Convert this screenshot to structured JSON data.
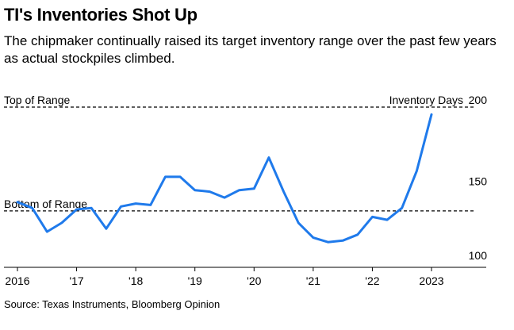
{
  "header": {
    "title": "TI's Inventories Shot Up",
    "subtitle": "The chipmaker continually raised its target inventory range over the past few years as actual stockpiles climbed."
  },
  "footer": {
    "source": "Source: Texas Instruments, Bloomberg Opinion"
  },
  "colors": {
    "line": "#1F7AEB",
    "reference": "#000000"
  },
  "chart_data": {
    "type": "line",
    "title": "TI's Inventories Shot Up",
    "ylabel": "Inventory Days",
    "xlabel": "",
    "ylim": [
      95,
      205
    ],
    "xlim": [
      2015.85,
      2023.95
    ],
    "yticks": [
      {
        "value": 100,
        "label": "100"
      },
      {
        "value": 150,
        "label": "150"
      },
      {
        "value": 200,
        "label": "200"
      }
    ],
    "xticks": [
      {
        "value": 2016,
        "label": "2016"
      },
      {
        "value": 2017,
        "label": "'17"
      },
      {
        "value": 2018,
        "label": "'18"
      },
      {
        "value": 2019,
        "label": "'19"
      },
      {
        "value": 2020,
        "label": "'20"
      },
      {
        "value": 2021,
        "label": "'21"
      },
      {
        "value": 2022,
        "label": "'22"
      },
      {
        "value": 2023,
        "label": "2023"
      }
    ],
    "reference_lines": [
      {
        "name": "top-of-range",
        "label": "Top of Range",
        "value": 200
      },
      {
        "name": "bottom-of-range",
        "label": "Bottom of Range",
        "value": 130
      }
    ],
    "series": [
      {
        "name": "Inventory Days",
        "x": [
          2016,
          2016.25,
          2016.5,
          2016.75,
          2017,
          2017.25,
          2017.5,
          2017.75,
          2018,
          2018.25,
          2018.5,
          2018.75,
          2019,
          2019.25,
          2019.5,
          2019.75,
          2020,
          2020.25,
          2020.5,
          2020.75,
          2021,
          2021.25,
          2021.5,
          2021.75,
          2022,
          2022.25,
          2022.5,
          2022.75,
          2023,
          2023.25
        ],
        "values": [
          136,
          132,
          116,
          122,
          131,
          132,
          118,
          133,
          135,
          134,
          153,
          153,
          144,
          143,
          139,
          144,
          145,
          166,
          143,
          122,
          112,
          109,
          110,
          114,
          126,
          124,
          132,
          157,
          195,
          null
        ]
      }
    ]
  }
}
